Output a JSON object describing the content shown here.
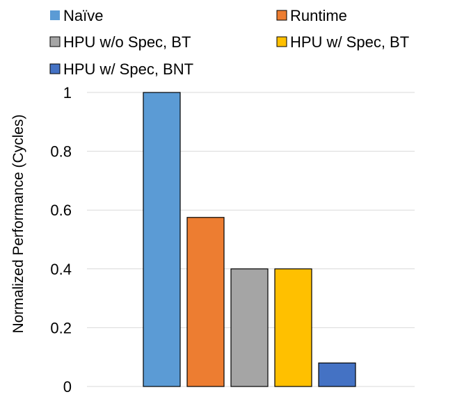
{
  "chart_data": {
    "type": "bar",
    "title": "",
    "xlabel": "",
    "ylabel": "Normalized Performance (Cycles)",
    "ylim": [
      0,
      1
    ],
    "yticks": [
      {
        "value": 0,
        "label": "0"
      },
      {
        "value": 0.2,
        "label": "0.2"
      },
      {
        "value": 0.4,
        "label": "0.4"
      },
      {
        "value": 0.6,
        "label": "0.6"
      },
      {
        "value": 0.8,
        "label": "0.8"
      },
      {
        "value": 1,
        "label": "1"
      }
    ],
    "grid": true,
    "legend_position": "top",
    "series": [
      {
        "name": "Naïve",
        "value": 1.0,
        "color": "#5b9bd5"
      },
      {
        "name": "Runtime",
        "value": 0.575,
        "color": "#ed7d31"
      },
      {
        "name": "HPU w/o Spec, BT",
        "value": 0.4,
        "color": "#a5a5a5"
      },
      {
        "name": "HPU w/ Spec, BT",
        "value": 0.4,
        "color": "#ffc000"
      },
      {
        "name": "HPU w/ Spec, BNT",
        "value": 0.08,
        "color": "#4472c4"
      }
    ]
  }
}
